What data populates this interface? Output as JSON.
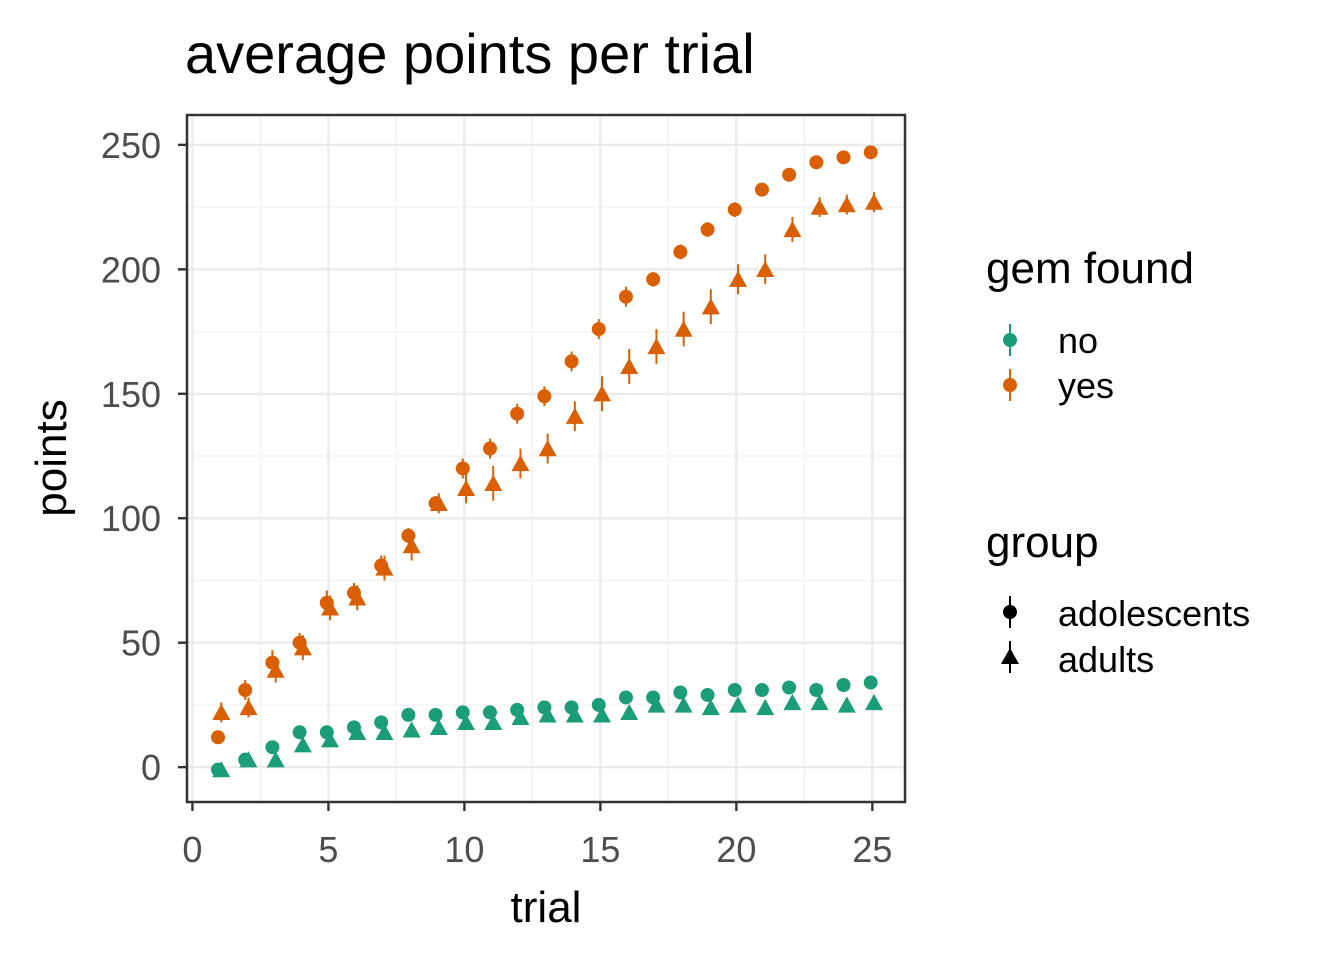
{
  "chart_data": {
    "type": "scatter",
    "title": "average points per trial",
    "xlabel": "trial",
    "ylabel": "points",
    "xlim": [
      -0.2,
      26.2
    ],
    "ylim": [
      -14,
      262
    ],
    "x_ticks": [
      0,
      5,
      10,
      15,
      20,
      25
    ],
    "y_ticks": [
      0,
      50,
      100,
      150,
      200,
      250
    ],
    "grid": true,
    "legend_placement": "right",
    "colors": {
      "no": "#1b9e77",
      "yes": "#d95f02"
    },
    "legends": [
      {
        "title": "gem found",
        "entries": [
          "no",
          "yes"
        ]
      },
      {
        "title": "group",
        "entries": [
          "adolescents",
          "adults"
        ]
      }
    ],
    "x": [
      1,
      2,
      3,
      4,
      5,
      6,
      7,
      8,
      9,
      10,
      11,
      12,
      13,
      14,
      15,
      16,
      17,
      18,
      19,
      20,
      21,
      22,
      23,
      24,
      25
    ],
    "series": [
      {
        "gem_found": "yes",
        "group": "adolescents",
        "shape": "circle",
        "values": [
          12,
          31,
          42,
          50,
          66,
          70,
          81,
          93,
          106,
          120,
          128,
          142,
          149,
          163,
          176,
          189,
          196,
          207,
          216,
          224,
          232,
          238,
          243,
          245,
          247
        ],
        "errors": [
          2,
          4,
          5,
          4,
          5,
          4,
          4,
          3,
          3,
          4,
          4,
          4,
          4,
          4,
          4,
          4,
          3,
          3,
          3,
          3,
          2,
          2,
          2,
          2,
          2
        ]
      },
      {
        "gem_found": "yes",
        "group": "adults",
        "shape": "triangle",
        "values": [
          22,
          24,
          39,
          48,
          64,
          68,
          80,
          89,
          106,
          112,
          114,
          122,
          128,
          141,
          150,
          161,
          169,
          176,
          185,
          196,
          200,
          216,
          225,
          226,
          227
        ],
        "errors": [
          4,
          4,
          5,
          5,
          5,
          5,
          5,
          6,
          4,
          6,
          7,
          6,
          6,
          6,
          7,
          7,
          7,
          7,
          7,
          6,
          6,
          5,
          4,
          4,
          4
        ]
      },
      {
        "gem_found": "no",
        "group": "adolescents",
        "shape": "circle",
        "values": [
          -1,
          3,
          8,
          14,
          14,
          16,
          18,
          21,
          21,
          22,
          22,
          23,
          24,
          24,
          25,
          28,
          28,
          30,
          29,
          31,
          31,
          32,
          31,
          33,
          34
        ],
        "errors": [
          1,
          1,
          1,
          1,
          1,
          1,
          1,
          1,
          1,
          1,
          1,
          1,
          1,
          1,
          1,
          1,
          1,
          1,
          1,
          1,
          1,
          1,
          1,
          1,
          1
        ]
      },
      {
        "gem_found": "no",
        "group": "adults",
        "shape": "triangle",
        "values": [
          -1,
          3,
          3,
          9,
          11,
          14,
          14,
          15,
          16,
          18,
          18,
          20,
          21,
          21,
          21,
          22,
          25,
          25,
          24,
          25,
          24,
          26,
          26,
          25,
          26
        ],
        "errors": [
          1,
          1,
          1,
          1,
          1,
          1,
          1,
          1,
          1,
          1,
          1,
          1,
          1,
          1,
          1,
          1,
          1,
          1,
          1,
          1,
          1,
          1,
          1,
          1,
          1
        ]
      }
    ]
  }
}
